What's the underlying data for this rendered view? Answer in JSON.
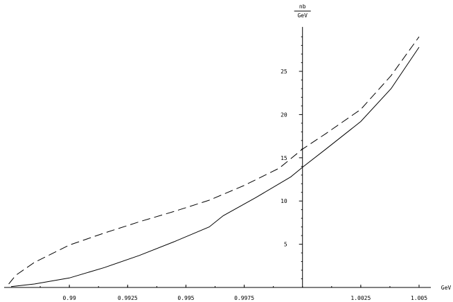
{
  "chart_data": {
    "type": "line",
    "xlabel": "GeV",
    "ylabel_numerator": "nb",
    "ylabel_denominator": "GeV",
    "x_ticks": [
      0.99,
      0.9925,
      0.995,
      0.9975,
      1.0025,
      1.005
    ],
    "x_tick_labels": [
      "0.99",
      "0.9925",
      "0.995",
      "0.9975",
      "1.0025",
      "1.005"
    ],
    "y_ticks": [
      5,
      10,
      15,
      20,
      25
    ],
    "y_tick_labels": [
      "5",
      "10",
      "15",
      "20",
      "25"
    ],
    "xlim": [
      0.9873,
      1.0058
    ],
    "ylim": [
      0,
      29.5
    ],
    "y_axis_x": 1.0,
    "series": [
      {
        "style": "solid",
        "x": [
          0.9875,
          0.9885,
          0.99,
          0.9915,
          0.993,
          0.9945,
          0.996,
          0.9966,
          0.998,
          0.9995,
          1.0,
          1.001,
          1.0025,
          1.0038,
          1.005
        ],
        "y": [
          0.1,
          0.4,
          1.1,
          2.3,
          3.7,
          5.3,
          7.0,
          8.3,
          10.4,
          12.8,
          13.9,
          16.0,
          19.2,
          23.0,
          27.8
        ]
      },
      {
        "style": "dashed",
        "x": [
          0.9874,
          0.9877,
          0.9885,
          0.99,
          0.9915,
          0.993,
          0.9945,
          0.996,
          0.9975,
          0.999,
          1.0,
          1.001,
          1.0025,
          1.0038,
          1.005
        ],
        "y": [
          0.4,
          1.4,
          2.9,
          4.9,
          6.3,
          7.6,
          8.8,
          10.1,
          11.8,
          13.8,
          16.0,
          17.8,
          20.6,
          24.5,
          29.0
        ]
      }
    ]
  }
}
